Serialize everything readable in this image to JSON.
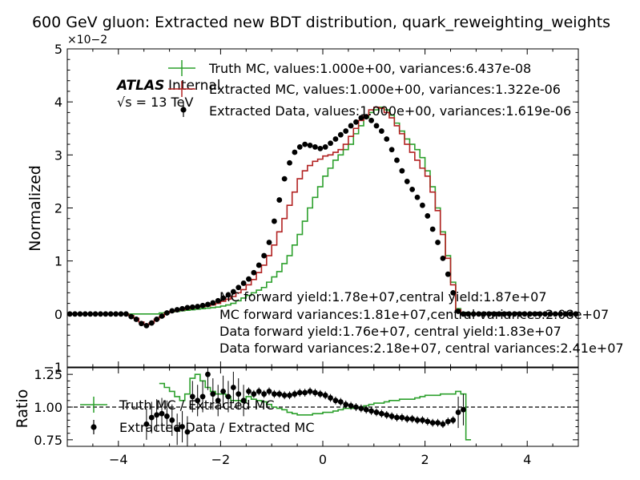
{
  "chart_data": [
    {
      "type": "line",
      "panel": "main",
      "title": "600 GeV gluon: Extracted new BDT distribution, quark_reweighting_weights",
      "ylabel": "Normalized",
      "yexponent_label": "×10−2",
      "xlim": [
        -5,
        5
      ],
      "ylim": [
        -1,
        5
      ],
      "yticks": [
        -1,
        0,
        1,
        2,
        3,
        4,
        5
      ],
      "ytick_labels": [
        "−1",
        "0",
        "1",
        "2",
        "3",
        "4",
        "5"
      ],
      "atlas_label": "ATLAS",
      "atlas_sublabel": "Internal",
      "energy_label": "√s = 13 TeV",
      "legend": [
        "Truth MC, values:1.000e+00, variances:6.437e-08",
        "Extracted MC, values:1.000e+00, variances:1.322e-06",
        "Extracted Data, values:1.000e+00, variances:1.619e-06"
      ],
      "annotations": [
        "MC forward yield:1.78e+07,central yield:1.87e+07",
        "MC forward variances:1.81e+07,central variances:2.08e+07",
        "Data forward yield:1.76e+07, central yield:1.83e+07",
        "Data forward variances:2.18e+07, central variances:2.41e+07"
      ],
      "bins": {
        "start": -5.0,
        "width": 0.1
      },
      "series": [
        {
          "name": "Truth MC",
          "style": "step",
          "color": "#2ca02c",
          "values": [
            0,
            0,
            0,
            0,
            0,
            0,
            0,
            0,
            0,
            0,
            0,
            0,
            0,
            0,
            0,
            0,
            0,
            0,
            0.02,
            0.03,
            0.04,
            0.05,
            0.06,
            0.07,
            0.08,
            0.09,
            0.1,
            0.11,
            0.12,
            0.13,
            0.15,
            0.17,
            0.2,
            0.25,
            0.3,
            0.35,
            0.4,
            0.45,
            0.5,
            0.6,
            0.7,
            0.8,
            0.95,
            1.1,
            1.3,
            1.5,
            1.75,
            2.0,
            2.2,
            2.4,
            2.6,
            2.75,
            2.9,
            3.0,
            3.1,
            3.2,
            3.4,
            3.55,
            3.7,
            3.8,
            3.85,
            3.9,
            3.85,
            3.75,
            3.6,
            3.45,
            3.3,
            3.2,
            3.1,
            2.95,
            2.7,
            2.4,
            2.0,
            1.55,
            1.1,
            0.6,
            0.1,
            0.03,
            0.02,
            0.01,
            0.01,
            0,
            0,
            0,
            0,
            0,
            0,
            0,
            0,
            0,
            0,
            0,
            0,
            0,
            0,
            0,
            0,
            0,
            0,
            0
          ]
        },
        {
          "name": "Extracted MC",
          "style": "step",
          "color": "#b22222",
          "values": [
            0,
            0,
            0,
            0,
            0,
            0,
            0,
            0,
            0,
            0,
            0,
            0,
            -0.03,
            -0.08,
            -0.15,
            -0.2,
            -0.17,
            -0.1,
            -0.05,
            0.02,
            0.05,
            0.07,
            0.08,
            0.1,
            0.12,
            0.13,
            0.14,
            0.15,
            0.17,
            0.2,
            0.24,
            0.28,
            0.33,
            0.4,
            0.46,
            0.55,
            0.65,
            0.78,
            0.92,
            1.1,
            1.3,
            1.55,
            1.8,
            2.05,
            2.3,
            2.55,
            2.7,
            2.8,
            2.88,
            2.92,
            2.98,
            3.0,
            3.05,
            3.1,
            3.2,
            3.35,
            3.5,
            3.65,
            3.75,
            3.85,
            3.9,
            3.88,
            3.8,
            3.7,
            3.55,
            3.4,
            3.2,
            3.05,
            2.9,
            2.75,
            2.6,
            2.3,
            1.95,
            1.5,
            1.05,
            0.55,
            0.08,
            0.02,
            0.01,
            0.01,
            0,
            0,
            0,
            0,
            0,
            0,
            0,
            0,
            0,
            0,
            0,
            0,
            0,
            0,
            0,
            0,
            0,
            0,
            0,
            0
          ]
        },
        {
          "name": "Extracted Data",
          "style": "points",
          "color": "#000000",
          "values": [
            0,
            0,
            0,
            0,
            0,
            0,
            0,
            0,
            0,
            0,
            0,
            0,
            -0.05,
            -0.1,
            -0.18,
            -0.22,
            -0.17,
            -0.1,
            -0.04,
            0.02,
            0.06,
            0.08,
            0.1,
            0.12,
            0.13,
            0.14,
            0.16,
            0.18,
            0.21,
            0.25,
            0.3,
            0.36,
            0.42,
            0.5,
            0.58,
            0.66,
            0.78,
            0.92,
            1.1,
            1.35,
            1.75,
            2.15,
            2.55,
            2.85,
            3.05,
            3.15,
            3.2,
            3.18,
            3.15,
            3.12,
            3.15,
            3.22,
            3.3,
            3.38,
            3.45,
            3.55,
            3.62,
            3.7,
            3.72,
            3.65,
            3.55,
            3.45,
            3.3,
            3.1,
            2.9,
            2.7,
            2.5,
            2.35,
            2.2,
            2.05,
            1.85,
            1.6,
            1.35,
            1.05,
            0.75,
            0.4,
            0.05,
            0.0,
            0.0,
            0.0,
            0.0,
            0,
            0,
            0,
            0,
            0,
            0,
            0,
            0,
            0,
            0,
            0,
            0,
            0,
            0,
            0,
            0,
            0,
            0,
            0
          ]
        }
      ]
    },
    {
      "type": "line",
      "panel": "ratio",
      "ylabel": "Ratio",
      "xlim": [
        -5,
        5
      ],
      "ylim": [
        0.7,
        1.3
      ],
      "xticks": [
        -4,
        -2,
        0,
        2,
        4
      ],
      "xtick_labels": [
        "−4",
        "−2",
        "0",
        "2",
        "4"
      ],
      "yticks": [
        0.75,
        1.0,
        1.25
      ],
      "ytick_labels": [
        "0.75",
        "1.00",
        "1.25"
      ],
      "reference_line": 1.0,
      "legend": [
        "Truth MC / Extracted MC",
        "Extracted Data / Extracted MC"
      ],
      "bins": {
        "start": -5.0,
        "width": 0.1
      },
      "series": [
        {
          "name": "Truth MC / Extracted MC",
          "style": "step",
          "color": "#2ca02c",
          "values": [
            null,
            null,
            null,
            null,
            null,
            null,
            null,
            null,
            null,
            null,
            null,
            null,
            null,
            null,
            null,
            null,
            null,
            null,
            1.18,
            1.15,
            1.12,
            1.08,
            1.05,
            1.1,
            1.22,
            1.25,
            1.2,
            1.15,
            1.12,
            1.1,
            1.1,
            1.08,
            1.05,
            1.05,
            1.04,
            1.08,
            1.06,
            1.05,
            1.04,
            1.02,
            1.0,
            0.99,
            0.98,
            0.96,
            0.95,
            0.94,
            0.94,
            0.94,
            0.95,
            0.95,
            0.96,
            0.96,
            0.97,
            0.98,
            0.99,
            0.99,
            1.0,
            1.0,
            1.01,
            1.02,
            1.03,
            1.03,
            1.04,
            1.05,
            1.05,
            1.06,
            1.06,
            1.06,
            1.07,
            1.08,
            1.09,
            1.09,
            1.09,
            1.1,
            1.1,
            1.1,
            1.12,
            1.1,
            0.75,
            null,
            null,
            null,
            null,
            null,
            null,
            null,
            null,
            null,
            null,
            null,
            null,
            null,
            null,
            null,
            null,
            null,
            null,
            null,
            null,
            null
          ]
        },
        {
          "name": "Extracted Data / Extracted MC",
          "style": "points",
          "color": "#000000",
          "values": [
            null,
            null,
            null,
            null,
            null,
            null,
            null,
            null,
            null,
            null,
            null,
            null,
            null,
            null,
            null,
            0.87,
            0.92,
            0.94,
            0.95,
            0.93,
            0.9,
            0.83,
            0.85,
            0.81,
            1.08,
            1.05,
            1.08,
            1.25,
            1.1,
            1.05,
            1.12,
            1.08,
            1.15,
            1.1,
            1.05,
            1.12,
            1.1,
            1.12,
            1.1,
            1.12,
            1.1,
            1.1,
            1.09,
            1.09,
            1.1,
            1.11,
            1.11,
            1.12,
            1.11,
            1.1,
            1.09,
            1.07,
            1.05,
            1.04,
            1.02,
            1.01,
            1.0,
            0.99,
            0.98,
            0.97,
            0.96,
            0.95,
            0.94,
            0.93,
            0.92,
            0.92,
            0.91,
            0.91,
            0.9,
            0.9,
            0.89,
            0.88,
            0.88,
            0.87,
            0.89,
            0.9,
            0.96,
            0.98,
            null,
            null,
            null,
            null,
            null,
            null,
            null,
            null,
            null,
            null,
            null,
            null,
            null,
            null,
            null,
            null,
            null,
            null,
            null,
            null,
            null,
            null
          ]
        }
      ]
    }
  ]
}
